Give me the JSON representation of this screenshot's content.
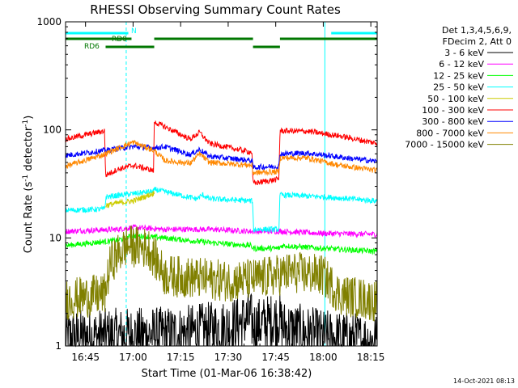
{
  "chart_data": {
    "type": "line",
    "title": "RHESSI Observing Summary Count Rates",
    "xlabel": "Start Time (01-Mar-06 16:38:42)",
    "ylabel": "Count Rate (s⁻¹ detector⁻¹)",
    "ylabel_main": "Count Rate (s",
    "ylabel_exp": "-1",
    "ylabel_mid": " detector",
    "ylabel_exp2": "-1",
    "ylabel_end": ")",
    "yscale": "log",
    "ylim": [
      1,
      1000
    ],
    "xlim": [
      "16:38:42",
      "18:17:00"
    ],
    "xticks": [
      "16:45",
      "17:00",
      "17:15",
      "17:30",
      "17:45",
      "18:00",
      "18:15"
    ],
    "yticks": [
      "1",
      "10",
      "100",
      "1000"
    ],
    "legend_header": [
      "Det 1,3,4,5,6,9,",
      "FDecim 2, Att 0"
    ],
    "legend_position": "right",
    "timestamp": "14-Oct-2021 08:13",
    "state_bars": [
      {
        "label": "N",
        "color": "#00ffff",
        "segments": [
          [
            "16:38:42",
            "16:58:30"
          ],
          [
            "18:02:30",
            "18:17:00"
          ]
        ]
      },
      {
        "label": "RD0",
        "color": "#007700",
        "segments": [
          [
            "16:38:42",
            "16:59:30"
          ],
          [
            "17:06:40",
            "17:37:50"
          ],
          [
            "17:46:20",
            "18:17:00"
          ]
        ]
      },
      {
        "label": "RD6",
        "color": "#007700",
        "segments": [
          [
            "16:51:20",
            "17:06:40"
          ],
          [
            "17:37:50",
            "17:46:20"
          ]
        ]
      }
    ],
    "night_lines": [
      "16:38:42",
      "18:00:30"
    ],
    "saa_lines": [
      "16:57:50",
      "18:17:00"
    ],
    "series": [
      {
        "name": "3 - 6 keV",
        "color": "#000000",
        "noise": 0.6,
        "min": 1,
        "max": 4,
        "x": [
          "16:38:42",
          "17:15:00",
          "17:30:00",
          "17:37:00",
          "17:38:00",
          "17:46:00",
          "17:47:00",
          "17:55:00",
          "18:00:00",
          "18:17:00"
        ],
        "values": [
          1.2,
          1.3,
          1.5,
          1.8,
          1.5,
          1.8,
          1.5,
          1.3,
          1.2,
          1.1
        ]
      },
      {
        "name": "6 - 12 keV",
        "color": "#ff00ff",
        "x": [
          "16:38:42",
          "16:55:00",
          "17:00:00",
          "17:10:00",
          "17:25:00",
          "17:37:00",
          "17:38:00",
          "17:46:00",
          "17:47:00",
          "18:00:00",
          "18:17:00"
        ],
        "values": [
          11.5,
          12,
          12.5,
          12,
          12,
          11.5,
          11.5,
          11.5,
          11.5,
          11,
          10.8
        ]
      },
      {
        "name": "12 - 25 keV",
        "color": "#00ff00",
        "x": [
          "16:38:42",
          "16:55:00",
          "17:00:00",
          "17:10:00",
          "17:25:00",
          "17:37:00",
          "17:38:00",
          "17:46:00",
          "17:47:00",
          "18:00:00",
          "18:17:00"
        ],
        "values": [
          8.5,
          9.5,
          10.5,
          10,
          9,
          8.5,
          8,
          8,
          8.5,
          8,
          7.5
        ]
      },
      {
        "name": "25 - 50 keV",
        "color": "#00ffff",
        "x": [
          "16:38:42",
          "16:51:00",
          "16:51:30",
          "17:06:30",
          "17:07:00",
          "17:20:00",
          "17:22:00",
          "17:24:00",
          "17:37:40",
          "17:38:00",
          "17:46:00",
          "17:46:20",
          "18:00:00",
          "18:17:00"
        ],
        "values": [
          18,
          18.5,
          24,
          27,
          28,
          23,
          25,
          23,
          22,
          12,
          12,
          25,
          24,
          22
        ]
      },
      {
        "name": "50 - 100 keV",
        "color": "#cccc00",
        "x": [
          "16:51:20",
          "16:55:00",
          "17:00:00",
          "17:06:40"
        ],
        "values": [
          20,
          21,
          22,
          26
        ]
      },
      {
        "name": "100 - 300 keV",
        "color": "#ff0000",
        "x": [
          "16:38:42",
          "16:51:00",
          "16:51:20",
          "16:55:00",
          "17:00:00",
          "17:06:30",
          "17:06:40",
          "17:10:00",
          "17:18:00",
          "17:21:00",
          "17:24:00",
          "17:37:30",
          "17:37:50",
          "17:46:00",
          "17:46:20",
          "17:55:00",
          "18:05:00",
          "18:17:00"
        ],
        "values": [
          82,
          98,
          38,
          43,
          47,
          42,
          118,
          107,
          82,
          95,
          75,
          62,
          32,
          35,
          98,
          97,
          88,
          75
        ]
      },
      {
        "name": "300 - 800 keV",
        "color": "#0000ff",
        "x": [
          "16:38:42",
          "16:50:00",
          "17:00:00",
          "17:06:40",
          "17:10:00",
          "17:18:00",
          "17:21:00",
          "17:24:00",
          "17:37:30",
          "17:37:50",
          "17:46:00",
          "17:46:20",
          "17:55:00",
          "18:05:00",
          "18:17:00"
        ],
        "values": [
          58,
          64,
          70,
          68,
          70,
          59,
          66,
          57,
          52,
          45,
          46,
          60,
          61,
          56,
          51
        ]
      },
      {
        "name": "800 - 7000 keV",
        "color": "#ff8800",
        "x": [
          "16:38:42",
          "16:50:00",
          "17:00:00",
          "17:06:40",
          "17:10:00",
          "17:18:00",
          "17:21:00",
          "17:24:00",
          "17:37:30",
          "17:37:50",
          "17:46:00",
          "17:46:20",
          "17:55:00",
          "18:05:00",
          "18:17:00"
        ],
        "values": [
          46,
          58,
          77,
          64,
          52,
          49,
          60,
          50,
          47,
          40,
          41,
          55,
          55,
          47,
          42
        ]
      },
      {
        "name": "7000 - 15000 keV",
        "color": "#808000",
        "noise": 0.45,
        "min": 1.5,
        "x": [
          "16:38:42",
          "16:51:00",
          "16:53:00",
          "16:58:00",
          "17:05:00",
          "17:10:00",
          "17:30:00",
          "17:40:00",
          "17:50:00",
          "18:00:00",
          "18:05:00",
          "18:17:00"
        ],
        "values": [
          2.7,
          3,
          6,
          8.5,
          8,
          4.5,
          4,
          4.2,
          4.8,
          4.5,
          3,
          2.6
        ]
      }
    ]
  }
}
